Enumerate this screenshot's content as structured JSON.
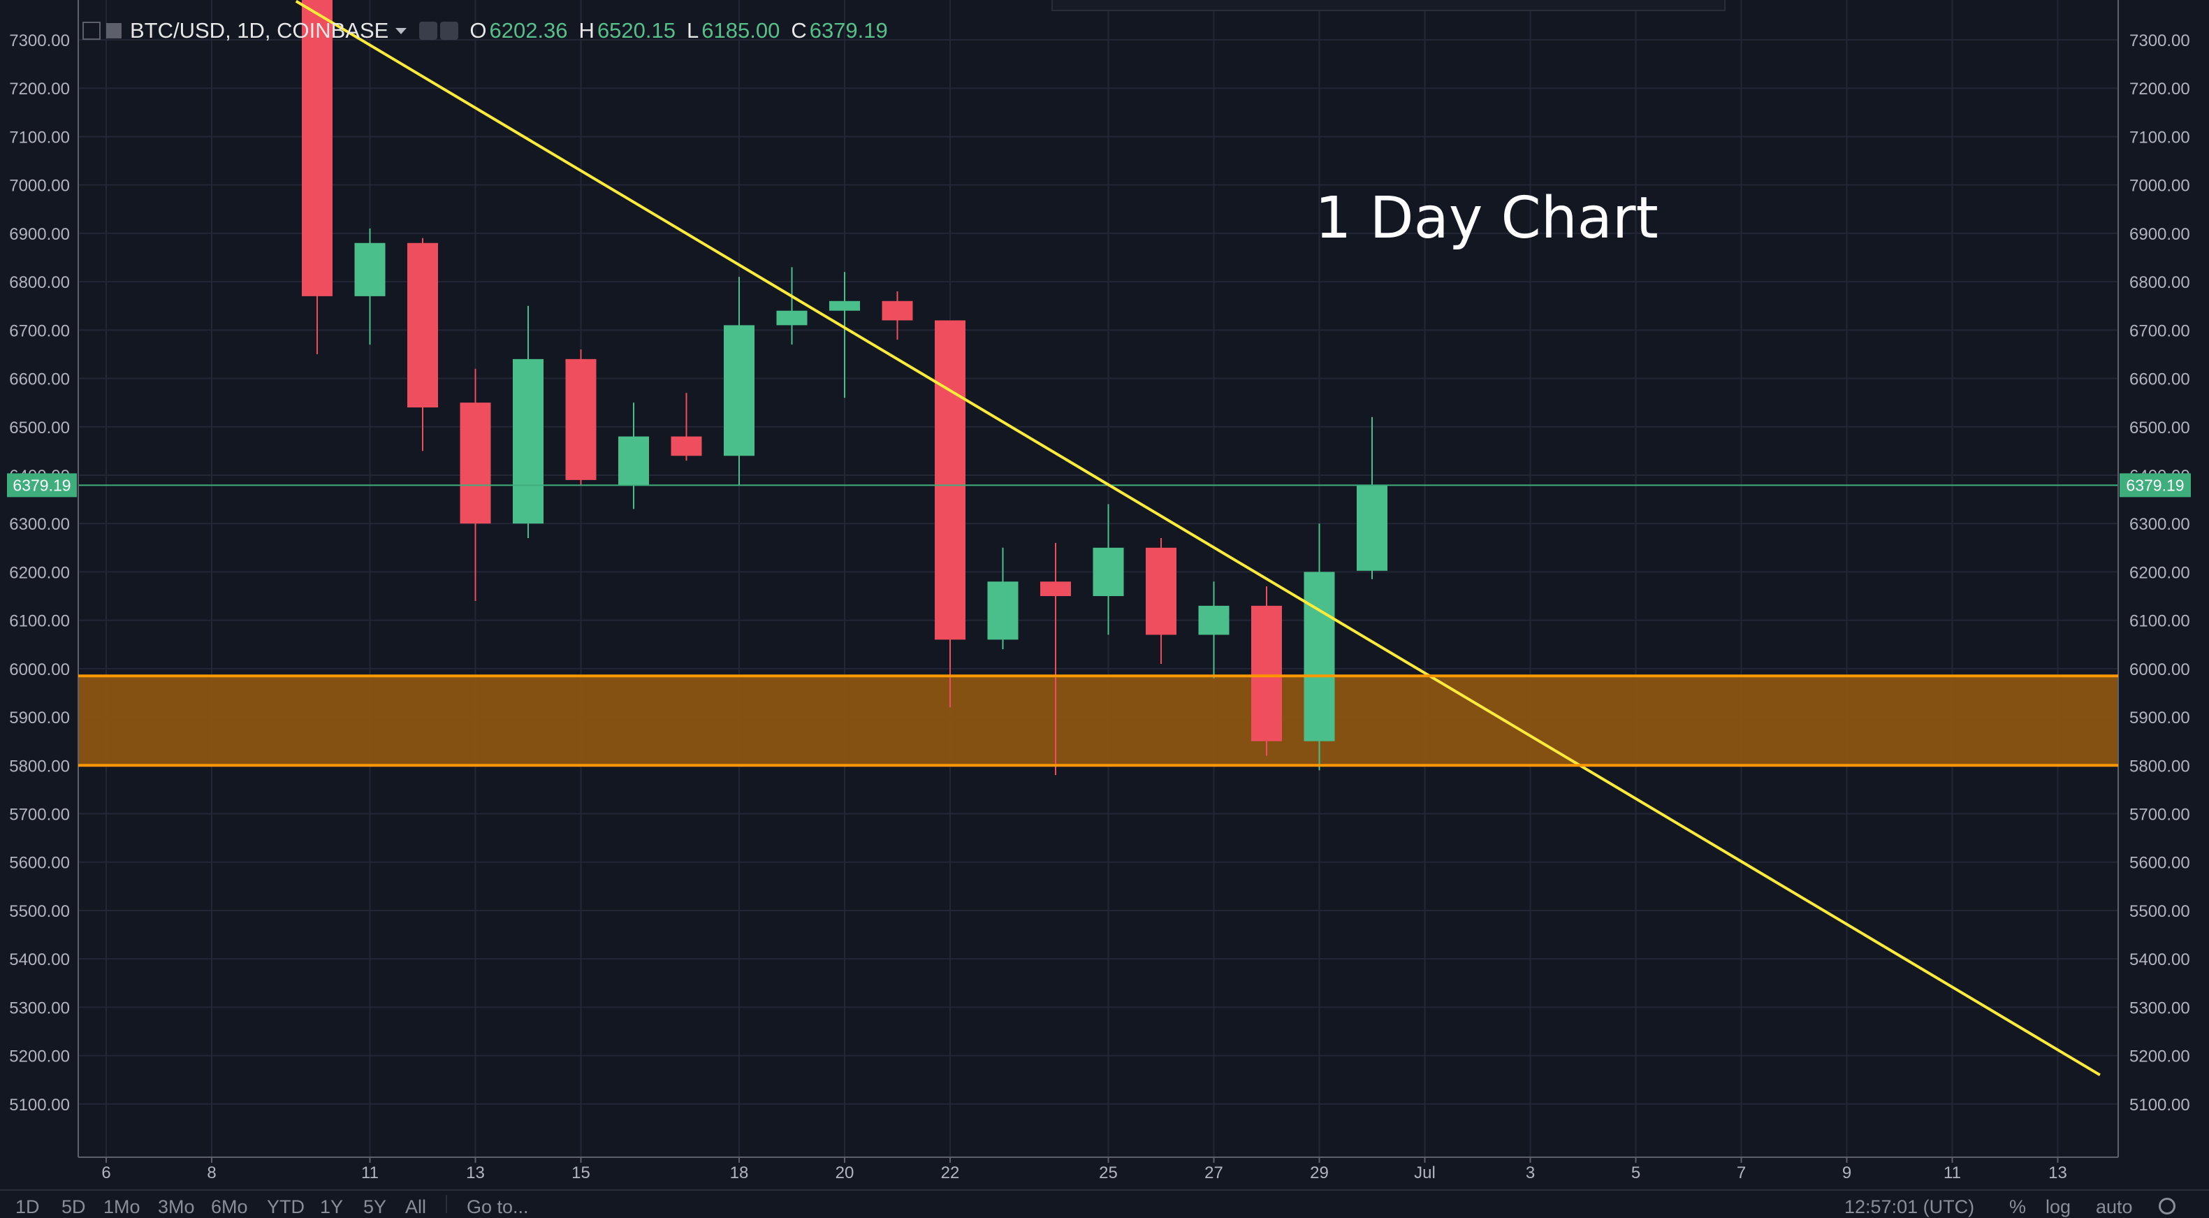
{
  "legend": {
    "symbol": "BTC/USD, 1D, COINBASE",
    "open_label": "O",
    "open": "6202.36",
    "high_label": "H",
    "high": "6520.15",
    "low_label": "L",
    "low": "6185.00",
    "close_label": "C",
    "close": "6379.19"
  },
  "annotation": {
    "title": "1 Day Chart"
  },
  "price_tag": "6379.19",
  "bottom_toolbar": {
    "ranges": [
      "1D",
      "5D",
      "1Mo",
      "3Mo",
      "6Mo",
      "YTD",
      "1Y",
      "5Y",
      "All"
    ],
    "goto": "Go to...",
    "time": "12:57:01 (UTC)",
    "percent": "%",
    "log": "log",
    "auto": "auto"
  },
  "colors": {
    "background": "#131722",
    "up": "#4bbf8b",
    "down": "#ee4e5d",
    "trendline": "#ffeb3b",
    "zone_fill": "#8a5412",
    "zone_border": "#ff9800",
    "price_line": "#3fae7d"
  },
  "chart_data": {
    "type": "candlestick",
    "symbol": "BTC/USD",
    "interval": "1D",
    "exchange": "COINBASE",
    "x_ticks": [
      "6",
      "8",
      "11",
      "13",
      "15",
      "18",
      "20",
      "22",
      "25",
      "27",
      "29",
      "Jul",
      "3",
      "5",
      "7",
      "9",
      "11",
      "13"
    ],
    "y_ticks": [
      "5100.00",
      "5200.00",
      "5300.00",
      "5400.00",
      "5500.00",
      "5600.00",
      "5700.00",
      "5800.00",
      "5900.00",
      "6000.00",
      "6100.00",
      "6200.00",
      "6300.00",
      "6400.00",
      "6500.00",
      "6600.00",
      "6700.00",
      "6800.00",
      "6900.00",
      "7000.00",
      "7100.00",
      "7200.00",
      "7300.00"
    ],
    "ylim": [
      5000,
      7350
    ],
    "candles": [
      {
        "date": "Jun 10",
        "open": 7500,
        "high": 7500,
        "low": 6650,
        "close": 6770
      },
      {
        "date": "Jun 11",
        "open": 6770,
        "high": 6910,
        "low": 6670,
        "close": 6880
      },
      {
        "date": "Jun 12",
        "open": 6880,
        "high": 6890,
        "low": 6450,
        "close": 6540
      },
      {
        "date": "Jun 13",
        "open": 6550,
        "high": 6620,
        "low": 6140,
        "close": 6300
      },
      {
        "date": "Jun 14",
        "open": 6300,
        "high": 6750,
        "low": 6270,
        "close": 6640
      },
      {
        "date": "Jun 15",
        "open": 6640,
        "high": 6660,
        "low": 6380,
        "close": 6390
      },
      {
        "date": "Jun 16",
        "open": 6380,
        "high": 6550,
        "low": 6330,
        "close": 6480
      },
      {
        "date": "Jun 17",
        "open": 6480,
        "high": 6570,
        "low": 6430,
        "close": 6440
      },
      {
        "date": "Jun 18",
        "open": 6440,
        "high": 6810,
        "low": 6380,
        "close": 6710
      },
      {
        "date": "Jun 19",
        "open": 6710,
        "high": 6830,
        "low": 6670,
        "close": 6740
      },
      {
        "date": "Jun 20",
        "open": 6740,
        "high": 6820,
        "low": 6560,
        "close": 6760
      },
      {
        "date": "Jun 21",
        "open": 6760,
        "high": 6780,
        "low": 6680,
        "close": 6720
      },
      {
        "date": "Jun 22",
        "open": 6720,
        "high": 6720,
        "low": 5920,
        "close": 6060
      },
      {
        "date": "Jun 23",
        "open": 6060,
        "high": 6250,
        "low": 6040,
        "close": 6180
      },
      {
        "date": "Jun 24",
        "open": 6180,
        "high": 6260,
        "low": 5780,
        "close": 6150
      },
      {
        "date": "Jun 25",
        "open": 6150,
        "high": 6340,
        "low": 6070,
        "close": 6250
      },
      {
        "date": "Jun 26",
        "open": 6250,
        "high": 6270,
        "low": 6010,
        "close": 6070
      },
      {
        "date": "Jun 27",
        "open": 6070,
        "high": 6180,
        "low": 5980,
        "close": 6130
      },
      {
        "date": "Jun 28",
        "open": 6130,
        "high": 6170,
        "low": 5820,
        "close": 5850
      },
      {
        "date": "Jun 29",
        "open": 5850,
        "high": 6300,
        "low": 5790,
        "close": 6200
      },
      {
        "date": "Jun 30",
        "open": 6202.36,
        "high": 6520.15,
        "low": 6185.0,
        "close": 6379.19
      }
    ],
    "support_zone": {
      "low": 5800,
      "high": 5985
    },
    "trendline": {
      "from": {
        "date": "Jun 9.6",
        "price": 7380
      },
      "to": {
        "date": "Jul 13.8",
        "price": 5160
      }
    },
    "last_price": 6379.19
  }
}
